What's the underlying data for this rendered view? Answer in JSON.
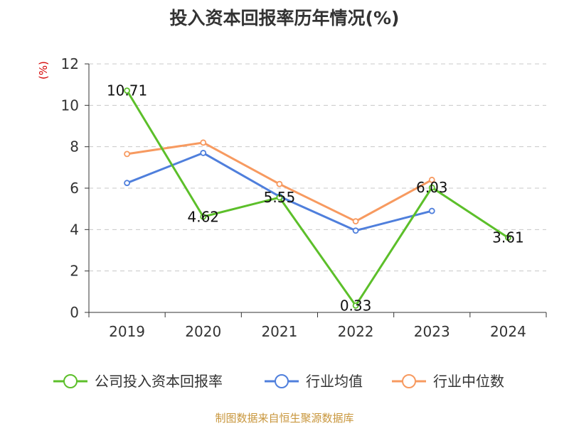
{
  "title": "投入资本回报率历年情况(%)",
  "source": "制图数据来自恒生聚源数据库",
  "colors": {
    "company": "#5cbf2a",
    "industry_avg": "#4f7fdc",
    "industry_median": "#f79a60",
    "unit": "#d40000",
    "source": "#c8963c",
    "grid": "#c8c8c8",
    "axis": "#333333"
  },
  "chart_data": {
    "type": "line",
    "title": "投入资本回报率历年情况(%)",
    "ylabel": "(%)",
    "xlabel": "",
    "categories": [
      "2019",
      "2020",
      "2021",
      "2022",
      "2023",
      "2024"
    ],
    "ylim": [
      0,
      12
    ],
    "yticks": [
      0,
      2,
      4,
      6,
      8,
      10,
      12
    ],
    "grid": true,
    "legend_position": "bottom",
    "series": [
      {
        "key": "company",
        "name": "公司投入资本回报率",
        "values": [
          10.71,
          4.62,
          5.55,
          0.33,
          6.03,
          3.61
        ],
        "labels": [
          "10.71",
          "4.62",
          "5.55",
          "0.33",
          "6.03",
          "3.61"
        ]
      },
      {
        "key": "industry_avg",
        "name": "行业均值",
        "values": [
          6.25,
          7.7,
          5.6,
          3.95,
          4.9,
          null
        ]
      },
      {
        "key": "industry_median",
        "name": "行业中位数",
        "values": [
          7.65,
          8.2,
          6.2,
          4.4,
          6.4,
          null
        ]
      }
    ]
  }
}
